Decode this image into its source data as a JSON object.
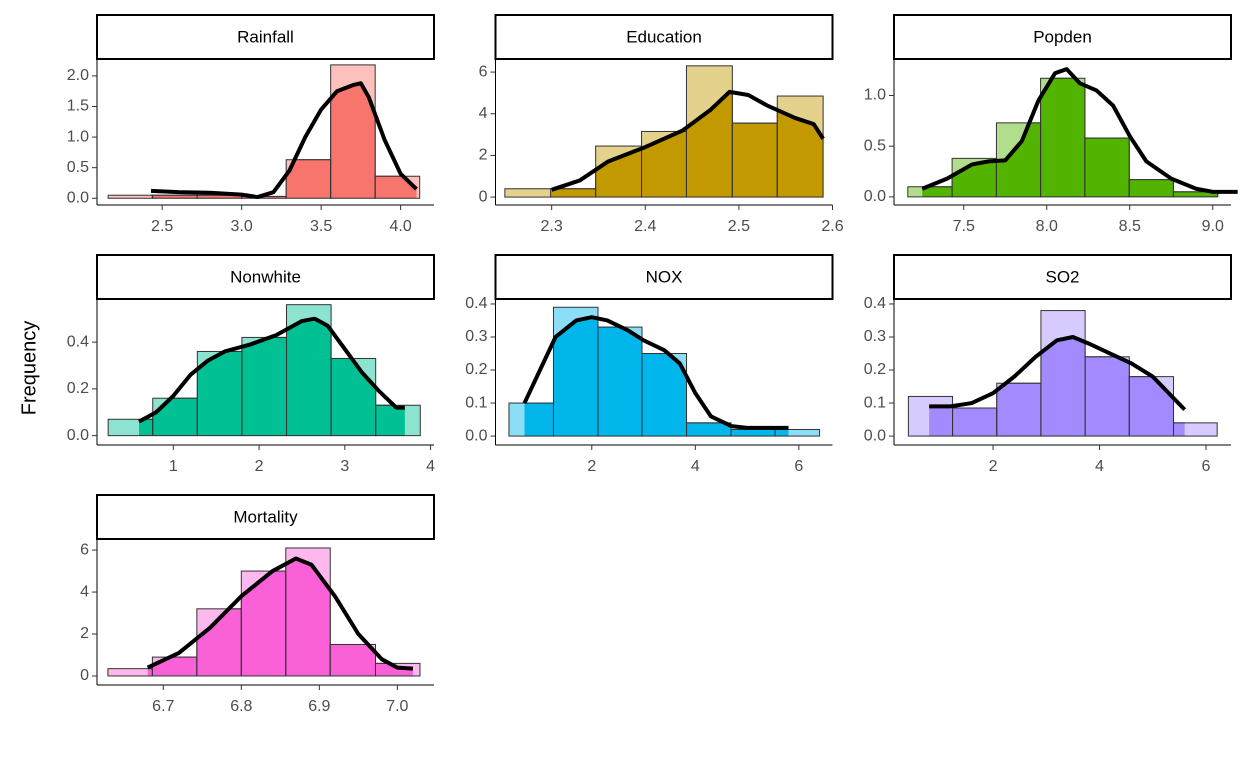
{
  "y_label": "Frequency",
  "chart_data": [
    {
      "type": "histogram",
      "title": "Rainfall",
      "color": "#F8766D",
      "bins": [
        2.16,
        2.44,
        2.72,
        3.0,
        3.28,
        3.56,
        3.84,
        4.12
      ],
      "values": [
        0.05,
        0.05,
        0.05,
        0.03,
        0.63,
        2.18,
        0.36
      ],
      "density": {
        "x": [
          2.43,
          2.6,
          2.8,
          3.0,
          3.1,
          3.2,
          3.3,
          3.4,
          3.5,
          3.6,
          3.7,
          3.75,
          3.8,
          3.9,
          4.0,
          4.1
        ],
        "y": [
          0.12,
          0.1,
          0.09,
          0.06,
          0.02,
          0.1,
          0.45,
          1.0,
          1.45,
          1.75,
          1.85,
          1.88,
          1.65,
          0.95,
          0.4,
          0.15
        ]
      },
      "xlim": [
        2.09,
        4.21
      ],
      "ylim": [
        -0.11,
        2.26
      ],
      "xticks": [
        2.5,
        {
          "value": 3,
          "label": "3.0"
        },
        3.5,
        {
          "value": 4,
          "label": "4.0"
        }
      ],
      "yticks": [
        {
          "value": 0,
          "label": "0.0"
        },
        0.5,
        {
          "value": 1,
          "label": "1.0"
        },
        1.5,
        {
          "value": 2,
          "label": "2.0"
        }
      ]
    },
    {
      "type": "histogram",
      "title": "Education",
      "color": "#C49A00",
      "bins": [
        2.25,
        2.299,
        2.347,
        2.396,
        2.444,
        2.493,
        2.541,
        2.59
      ],
      "values": [
        0.4,
        0.4,
        2.45,
        3.15,
        6.3,
        3.55,
        4.85
      ],
      "density": {
        "x": [
          2.3,
          2.33,
          2.36,
          2.4,
          2.44,
          2.47,
          2.49,
          2.51,
          2.53,
          2.56,
          2.58,
          2.59
        ],
        "y": [
          0.35,
          0.8,
          1.7,
          2.4,
          3.2,
          4.2,
          5.05,
          4.9,
          4.4,
          3.8,
          3.5,
          2.8
        ]
      },
      "xlim": [
        2.24,
        2.6
      ],
      "ylim": [
        -0.38,
        6.58
      ],
      "xticks": [
        2.3,
        2.4,
        2.5,
        2.6
      ],
      "yticks": [
        0,
        2,
        4,
        6
      ]
    },
    {
      "type": "histogram",
      "title": "Popden",
      "color": "#53B400",
      "bins": [
        7.163,
        7.43,
        7.697,
        7.963,
        8.23,
        8.497,
        8.763,
        9.03
      ],
      "values": [
        0.1,
        0.38,
        0.73,
        1.17,
        0.58,
        0.17,
        0.05
      ],
      "density": {
        "x": [
          7.25,
          7.4,
          7.55,
          7.65,
          7.75,
          7.85,
          7.95,
          8.05,
          8.12,
          8.2,
          8.3,
          8.4,
          8.5,
          8.6,
          8.75,
          8.9,
          9.0,
          9.15
        ],
        "y": [
          0.08,
          0.18,
          0.32,
          0.35,
          0.36,
          0.55,
          0.95,
          1.22,
          1.26,
          1.12,
          1.05,
          0.9,
          0.6,
          0.35,
          0.18,
          0.08,
          0.05,
          0.05
        ]
      },
      "xlim": [
        7.08,
        9.11
      ],
      "ylim": [
        -0.08,
        1.35
      ],
      "xticks": [
        7.5,
        {
          "value": 8,
          "label": "8.0"
        },
        8.5,
        {
          "value": 9,
          "label": "9.0"
        }
      ],
      "yticks": [
        {
          "value": 0,
          "label": "0.0"
        },
        0.5,
        {
          "value": 1,
          "label": "1.0"
        }
      ]
    },
    {
      "type": "histogram",
      "title": "Nonwhite",
      "color": "#00C094",
      "bins": [
        0.24,
        0.76,
        1.28,
        1.8,
        2.32,
        2.84,
        3.36,
        3.88
      ],
      "values": [
        0.07,
        0.16,
        0.36,
        0.42,
        0.56,
        0.33,
        0.13
      ],
      "density": {
        "x": [
          0.6,
          0.8,
          1.0,
          1.2,
          1.4,
          1.6,
          1.9,
          2.2,
          2.5,
          2.65,
          2.8,
          3.0,
          3.2,
          3.4,
          3.6,
          3.7
        ],
        "y": [
          0.06,
          0.1,
          0.17,
          0.26,
          0.32,
          0.36,
          0.39,
          0.43,
          0.49,
          0.5,
          0.47,
          0.37,
          0.27,
          0.19,
          0.12,
          0.12
        ]
      },
      "xlim": [
        0.11,
        4.04
      ],
      "ylim": [
        -0.04,
        0.58
      ],
      "xticks": [
        1,
        2,
        3,
        4
      ],
      "yticks": [
        {
          "value": 0,
          "label": "0.0"
        },
        0.2,
        0.4
      ]
    },
    {
      "type": "histogram",
      "title": "NOX",
      "color": "#00B6EB",
      "bins": [
        0.4,
        1.26,
        2.12,
        2.97,
        3.83,
        4.69,
        5.54,
        6.4
      ],
      "values": [
        0.1,
        0.39,
        0.33,
        0.25,
        0.04,
        0.02,
        0.02
      ],
      "density": {
        "x": [
          0.7,
          1.0,
          1.3,
          1.7,
          2.0,
          2.3,
          2.7,
          3.0,
          3.4,
          3.7,
          4.0,
          4.3,
          4.7,
          5.0,
          5.5,
          5.8
        ],
        "y": [
          0.1,
          0.2,
          0.3,
          0.35,
          0.36,
          0.35,
          0.32,
          0.29,
          0.26,
          0.22,
          0.13,
          0.06,
          0.03,
          0.025,
          0.025,
          0.025
        ]
      },
      "xlim": [
        0.14,
        6.65
      ],
      "ylim": [
        -0.027,
        0.412
      ],
      "xticks": [
        2,
        4,
        6
      ],
      "yticks": [
        {
          "value": 0,
          "label": "0.0"
        },
        0.1,
        0.2,
        0.3,
        0.4
      ]
    },
    {
      "type": "histogram",
      "title": "SO2",
      "color": "#A58AFF",
      "bins": [
        0.41,
        1.24,
        2.07,
        2.9,
        3.73,
        4.56,
        5.39,
        6.21
      ],
      "values": [
        0.12,
        0.085,
        0.16,
        0.38,
        0.24,
        0.18,
        0.04
      ],
      "density": {
        "x": [
          0.8,
          1.2,
          1.6,
          2.0,
          2.4,
          2.8,
          3.2,
          3.5,
          3.8,
          4.2,
          4.6,
          5.0,
          5.3,
          5.6
        ],
        "y": [
          0.09,
          0.09,
          0.1,
          0.13,
          0.18,
          0.24,
          0.29,
          0.3,
          0.28,
          0.25,
          0.22,
          0.18,
          0.13,
          0.08
        ]
      },
      "xlim": [
        0.14,
        6.47
      ],
      "ylim": [
        -0.027,
        0.412
      ],
      "xticks": [
        2,
        4,
        6
      ],
      "yticks": [
        {
          "value": 0,
          "label": "0.0"
        },
        0.1,
        0.2,
        0.3,
        0.4
      ]
    },
    {
      "type": "histogram",
      "title": "Mortality",
      "color": "#FB61D7",
      "bins": [
        6.629,
        6.686,
        6.743,
        6.8,
        6.857,
        6.914,
        6.972,
        7.029
      ],
      "values": [
        0.35,
        0.9,
        3.2,
        5.0,
        6.1,
        1.5,
        0.6
      ],
      "density": {
        "x": [
          6.68,
          6.72,
          6.76,
          6.8,
          6.84,
          6.87,
          6.89,
          6.92,
          6.95,
          6.98,
          7.0,
          7.02
        ],
        "y": [
          0.4,
          1.1,
          2.3,
          3.8,
          5.0,
          5.6,
          5.3,
          3.8,
          2.0,
          0.8,
          0.4,
          0.35
        ]
      },
      "xlim": [
        6.615,
        7.047
      ],
      "ylim": [
        -0.43,
        6.48
      ],
      "xticks": [
        6.7,
        6.8,
        6.9,
        {
          "value": 7,
          "label": "7.0"
        }
      ],
      "yticks": [
        0,
        2,
        4,
        6
      ]
    }
  ]
}
